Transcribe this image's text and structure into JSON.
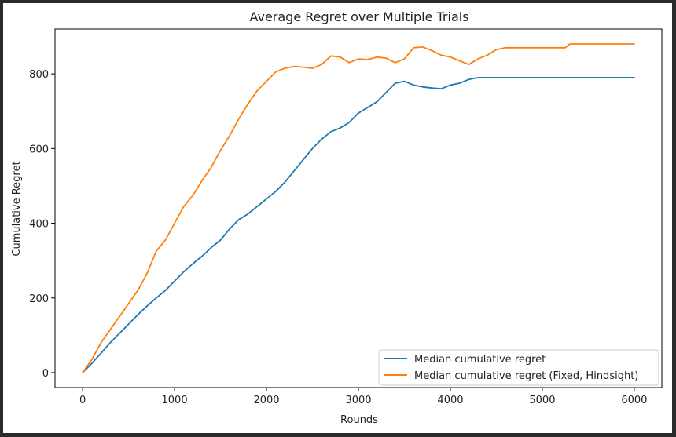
{
  "chart_data": {
    "type": "line",
    "title": "Average Regret over Multiple Trials",
    "xlabel": "Rounds",
    "ylabel": "Cumulative Regret",
    "xlim": [
      -300,
      6300
    ],
    "ylim": [
      -40,
      920
    ],
    "xticks": [
      0,
      1000,
      2000,
      3000,
      4000,
      5000,
      6000
    ],
    "yticks": [
      0,
      200,
      400,
      600,
      800
    ],
    "grid": false,
    "legend_position": "lower-right",
    "series": [
      {
        "name": "Median cumulative regret",
        "color": "#1f77b4",
        "x": [
          0,
          100,
          200,
          300,
          400,
          500,
          600,
          700,
          800,
          900,
          1000,
          1100,
          1200,
          1300,
          1400,
          1500,
          1600,
          1700,
          1800,
          1900,
          2000,
          2100,
          2200,
          2300,
          2400,
          2500,
          2600,
          2700,
          2800,
          2900,
          3000,
          3100,
          3200,
          3300,
          3400,
          3500,
          3600,
          3700,
          3800,
          3900,
          4000,
          4100,
          4200,
          4300,
          4400,
          5000,
          5500,
          6000
        ],
        "y": [
          0,
          25,
          52,
          80,
          105,
          130,
          155,
          178,
          200,
          220,
          245,
          270,
          292,
          312,
          335,
          355,
          385,
          410,
          425,
          445,
          465,
          485,
          510,
          540,
          570,
          600,
          625,
          645,
          655,
          670,
          695,
          710,
          725,
          750,
          775,
          780,
          770,
          765,
          762,
          760,
          770,
          775,
          785,
          790,
          790,
          790,
          790,
          790
        ]
      },
      {
        "name": "Median cumulative regret (Fixed, Hindsight)",
        "color": "#ff7f0e",
        "x": [
          0,
          100,
          200,
          300,
          400,
          500,
          600,
          700,
          800,
          900,
          1000,
          1100,
          1200,
          1300,
          1400,
          1500,
          1600,
          1700,
          1800,
          1900,
          2000,
          2100,
          2200,
          2300,
          2400,
          2500,
          2600,
          2700,
          2800,
          2900,
          3000,
          3100,
          3200,
          3300,
          3400,
          3500,
          3600,
          3700,
          3800,
          3900,
          4000,
          4100,
          4200,
          4300,
          4400,
          4500,
          4600,
          5000,
          5250,
          5300,
          5500,
          6000
        ],
        "y": [
          0,
          35,
          80,
          115,
          150,
          185,
          220,
          265,
          325,
          355,
          400,
          445,
          475,
          515,
          550,
          595,
          635,
          680,
          720,
          755,
          780,
          805,
          815,
          820,
          818,
          815,
          825,
          848,
          845,
          830,
          840,
          838,
          845,
          842,
          830,
          840,
          870,
          872,
          862,
          850,
          845,
          835,
          825,
          840,
          850,
          865,
          870,
          870,
          870,
          880,
          880,
          880
        ]
      }
    ]
  }
}
